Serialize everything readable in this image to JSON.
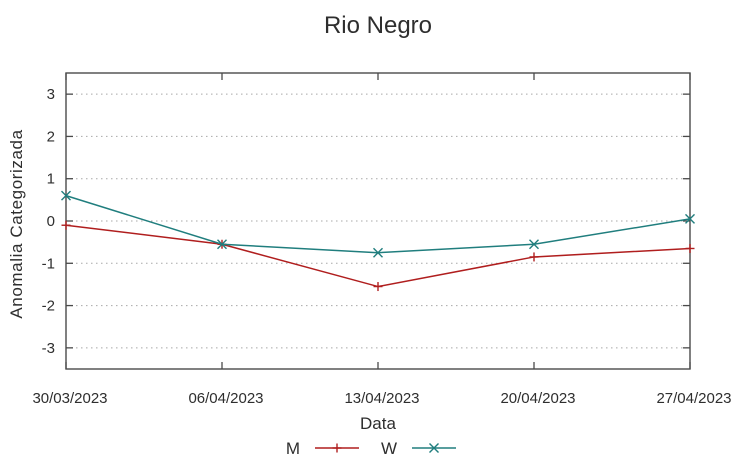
{
  "chart_data": {
    "type": "line",
    "title": "Rio Negro",
    "xlabel": "Data",
    "ylabel": "Anomalia Categorizada",
    "x": [
      "30/03/2023",
      "06/04/2023",
      "13/04/2023",
      "20/04/2023",
      "27/04/2023"
    ],
    "yticks": [
      3,
      2,
      1,
      0,
      -1,
      -2,
      -3
    ],
    "ylim": [
      -3.5,
      3.5
    ],
    "grid": true,
    "grid_style": "dotted-horizontal",
    "legend_position": "bottom-center",
    "series": [
      {
        "name": "M",
        "color": "#b01e1e",
        "marker": "plus",
        "values": [
          -0.1,
          -0.55,
          -1.55,
          -0.85,
          -0.65
        ]
      },
      {
        "name": "W",
        "color": "#207e7e",
        "marker": "cross",
        "values": [
          0.6,
          -0.55,
          -0.75,
          -0.55,
          0.05
        ]
      }
    ],
    "colors": {
      "frame": "#4a4a4a",
      "gridline": "#a8a8a8",
      "text": "#2e2e2e"
    }
  }
}
